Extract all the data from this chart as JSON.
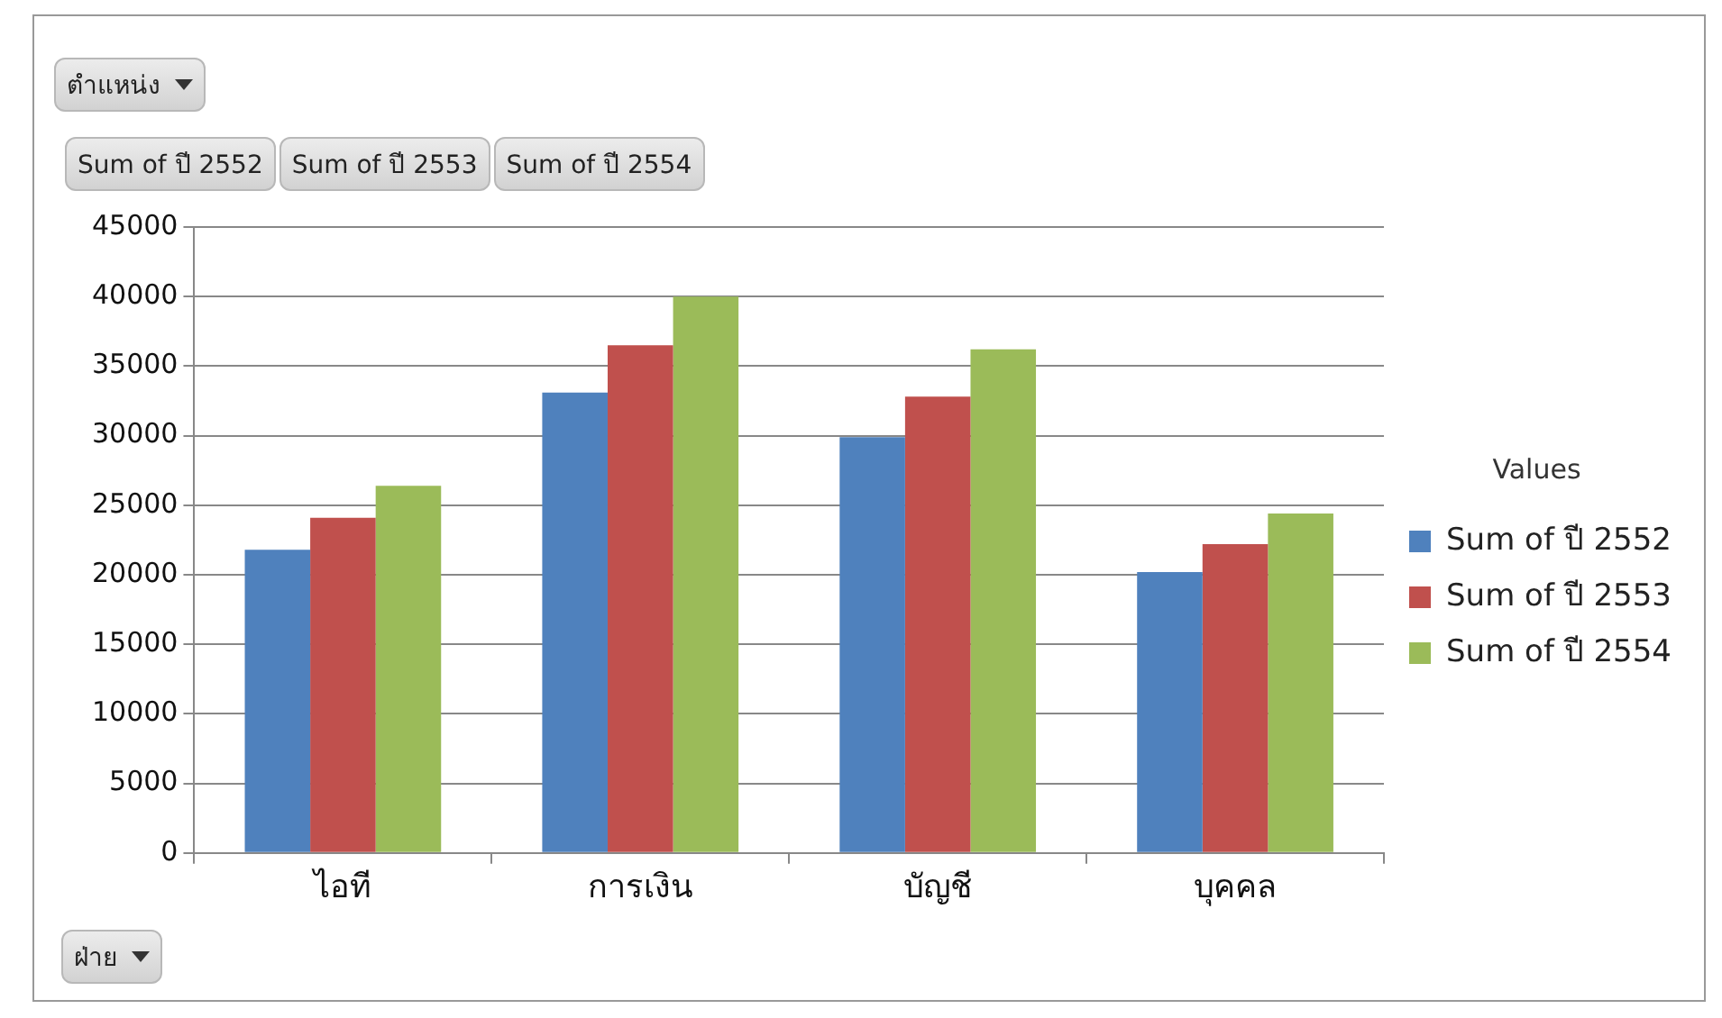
{
  "chart_data": {
    "type": "bar",
    "legend_title": "Values",
    "categories": [
      "ไอที",
      "การเงิน",
      "บัญชี",
      "บุคคล"
    ],
    "series": [
      {
        "name": "Sum of ปี 2552",
        "color": "#4f81bd",
        "values": [
          21800,
          33100,
          29900,
          20200
        ]
      },
      {
        "name": "Sum of ปี 2553",
        "color": "#c0504d",
        "values": [
          24100,
          36500,
          32800,
          22200
        ]
      },
      {
        "name": "Sum of ปี 2554",
        "color": "#9bbb59",
        "values": [
          26400,
          40000,
          36200,
          24400
        ]
      }
    ],
    "ylim": [
      0,
      45000
    ],
    "yticks": [
      0,
      5000,
      10000,
      15000,
      20000,
      25000,
      30000,
      35000,
      40000,
      45000
    ],
    "grid": "y",
    "legend": "right",
    "annotations": [
      "ตำแหน่ง",
      "Sum of ปี 2552",
      "Sum of ปี 2553",
      "Sum of ปี 2554",
      "ฝ่าย"
    ]
  }
}
